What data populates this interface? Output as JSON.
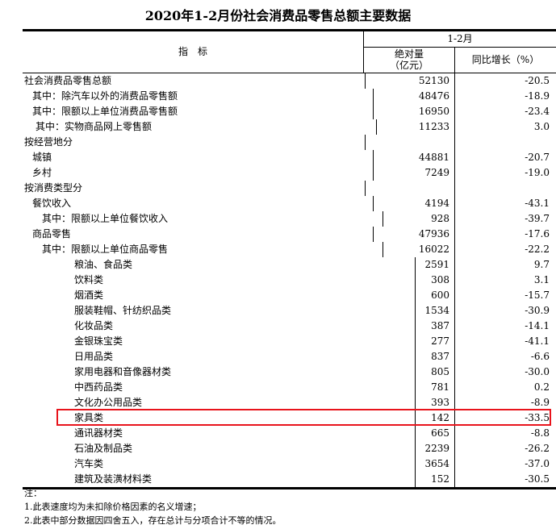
{
  "title": "2020年1-2月份社会消费品零售总额主要数据",
  "header": {
    "indicator": "指　标",
    "period": "1-2月",
    "absolute": "绝对量",
    "absolute_unit": "（亿元）",
    "yoy": "同比增长（%）"
  },
  "rows": [
    {
      "name": "社会消费品零售总额",
      "abs": "52130",
      "yoy": "-20.5",
      "level": "l0"
    },
    {
      "name": "其中：除汽车以外的消费品零售额",
      "abs": "48476",
      "yoy": "-18.9",
      "level": "l1"
    },
    {
      "name": "其中：限额以上单位消费品零售额",
      "abs": "16950",
      "yoy": "-23.4",
      "level": "l1"
    },
    {
      "name": "其中：实物商品网上零售额",
      "abs": "11233",
      "yoy": "3.0",
      "level": "l1b"
    },
    {
      "name": "按经营地分",
      "abs": "",
      "yoy": "",
      "level": "l0"
    },
    {
      "name": "城镇",
      "abs": "44881",
      "yoy": "-20.7",
      "level": "l1"
    },
    {
      "name": "乡村",
      "abs": "7249",
      "yoy": "-19.0",
      "level": "l1"
    },
    {
      "name": "按消费类型分",
      "abs": "",
      "yoy": "",
      "level": "l0"
    },
    {
      "name": "餐饮收入",
      "abs": "4194",
      "yoy": "-43.1",
      "level": "l1"
    },
    {
      "name": "其中：限额以上单位餐饮收入",
      "abs": "928",
      "yoy": "-39.7",
      "level": "l2"
    },
    {
      "name": "商品零售",
      "abs": "47936",
      "yoy": "-17.6",
      "level": "l1"
    },
    {
      "name": "其中：限额以上单位商品零售",
      "abs": "16022",
      "yoy": "-22.2",
      "level": "l2"
    },
    {
      "name": "粮油、食品类",
      "abs": "2591",
      "yoy": "9.7",
      "level": "l3"
    },
    {
      "name": "饮料类",
      "abs": "308",
      "yoy": "3.1",
      "level": "l3"
    },
    {
      "name": "烟酒类",
      "abs": "600",
      "yoy": "-15.7",
      "level": "l3"
    },
    {
      "name": "服装鞋帽、针纺织品类",
      "abs": "1534",
      "yoy": "-30.9",
      "level": "l3"
    },
    {
      "name": "化妆品类",
      "abs": "387",
      "yoy": "-14.1",
      "level": "l3"
    },
    {
      "name": "金银珠宝类",
      "abs": "277",
      "yoy": "-41.1",
      "level": "l3"
    },
    {
      "name": "日用品类",
      "abs": "837",
      "yoy": "-6.6",
      "level": "l3"
    },
    {
      "name": "家用电器和音像器材类",
      "abs": "805",
      "yoy": "-30.0",
      "level": "l3"
    },
    {
      "name": "中西药品类",
      "abs": "781",
      "yoy": "0.2",
      "level": "l3"
    },
    {
      "name": "文化办公用品类",
      "abs": "393",
      "yoy": "-8.9",
      "level": "l3"
    },
    {
      "name": "家具类",
      "abs": "142",
      "yoy": "-33.5",
      "level": "l3"
    },
    {
      "name": "通讯器材类",
      "abs": "665",
      "yoy": "-8.8",
      "level": "l3"
    },
    {
      "name": "石油及制品类",
      "abs": "2239",
      "yoy": "-26.2",
      "level": "l3"
    },
    {
      "name": "汽车类",
      "abs": "3654",
      "yoy": "-37.0",
      "level": "l3"
    },
    {
      "name": "建筑及装潢材料类",
      "abs": "152",
      "yoy": "-30.5",
      "level": "l3"
    }
  ],
  "highlight_color": "#e8141c",
  "notes": [
    "注：",
    "1.此表速度均为未扣除价格因素的名义增速；",
    "2.此表中部分数据因四舍五入，存在总计与分项合计不等的情况。"
  ]
}
